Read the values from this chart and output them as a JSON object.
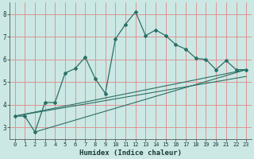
{
  "title": "",
  "xlabel": "Humidex (Indice chaleur)",
  "ylabel": "",
  "background_color": "#cce8e4",
  "line_color": "#2a7065",
  "grid_color": "#e08888",
  "xlim": [
    -0.5,
    23.5
  ],
  "ylim": [
    2.5,
    8.5
  ],
  "xticks": [
    0,
    1,
    2,
    3,
    4,
    5,
    6,
    7,
    8,
    9,
    10,
    11,
    12,
    13,
    14,
    15,
    16,
    17,
    18,
    19,
    20,
    21,
    22,
    23
  ],
  "yticks": [
    3,
    4,
    5,
    6,
    7,
    8
  ],
  "series1_x": [
    0,
    1,
    2,
    3,
    4,
    5,
    6,
    7,
    8,
    9,
    10,
    11,
    12,
    13,
    14,
    15,
    16,
    17,
    18,
    19,
    20,
    21,
    22,
    23
  ],
  "series1_y": [
    3.5,
    3.5,
    2.8,
    4.1,
    4.1,
    5.4,
    5.6,
    6.1,
    5.15,
    4.5,
    6.9,
    7.55,
    8.1,
    7.05,
    7.3,
    7.05,
    6.65,
    6.45,
    6.05,
    6.0,
    5.55,
    5.95,
    5.55,
    5.55
  ],
  "trend1_x": [
    0,
    23
  ],
  "trend1_y": [
    3.5,
    5.55
  ],
  "trend2_x": [
    0,
    23
  ],
  "trend2_y": [
    3.5,
    5.25
  ],
  "trend3_x": [
    2,
    23
  ],
  "trend3_y": [
    2.8,
    5.55
  ]
}
